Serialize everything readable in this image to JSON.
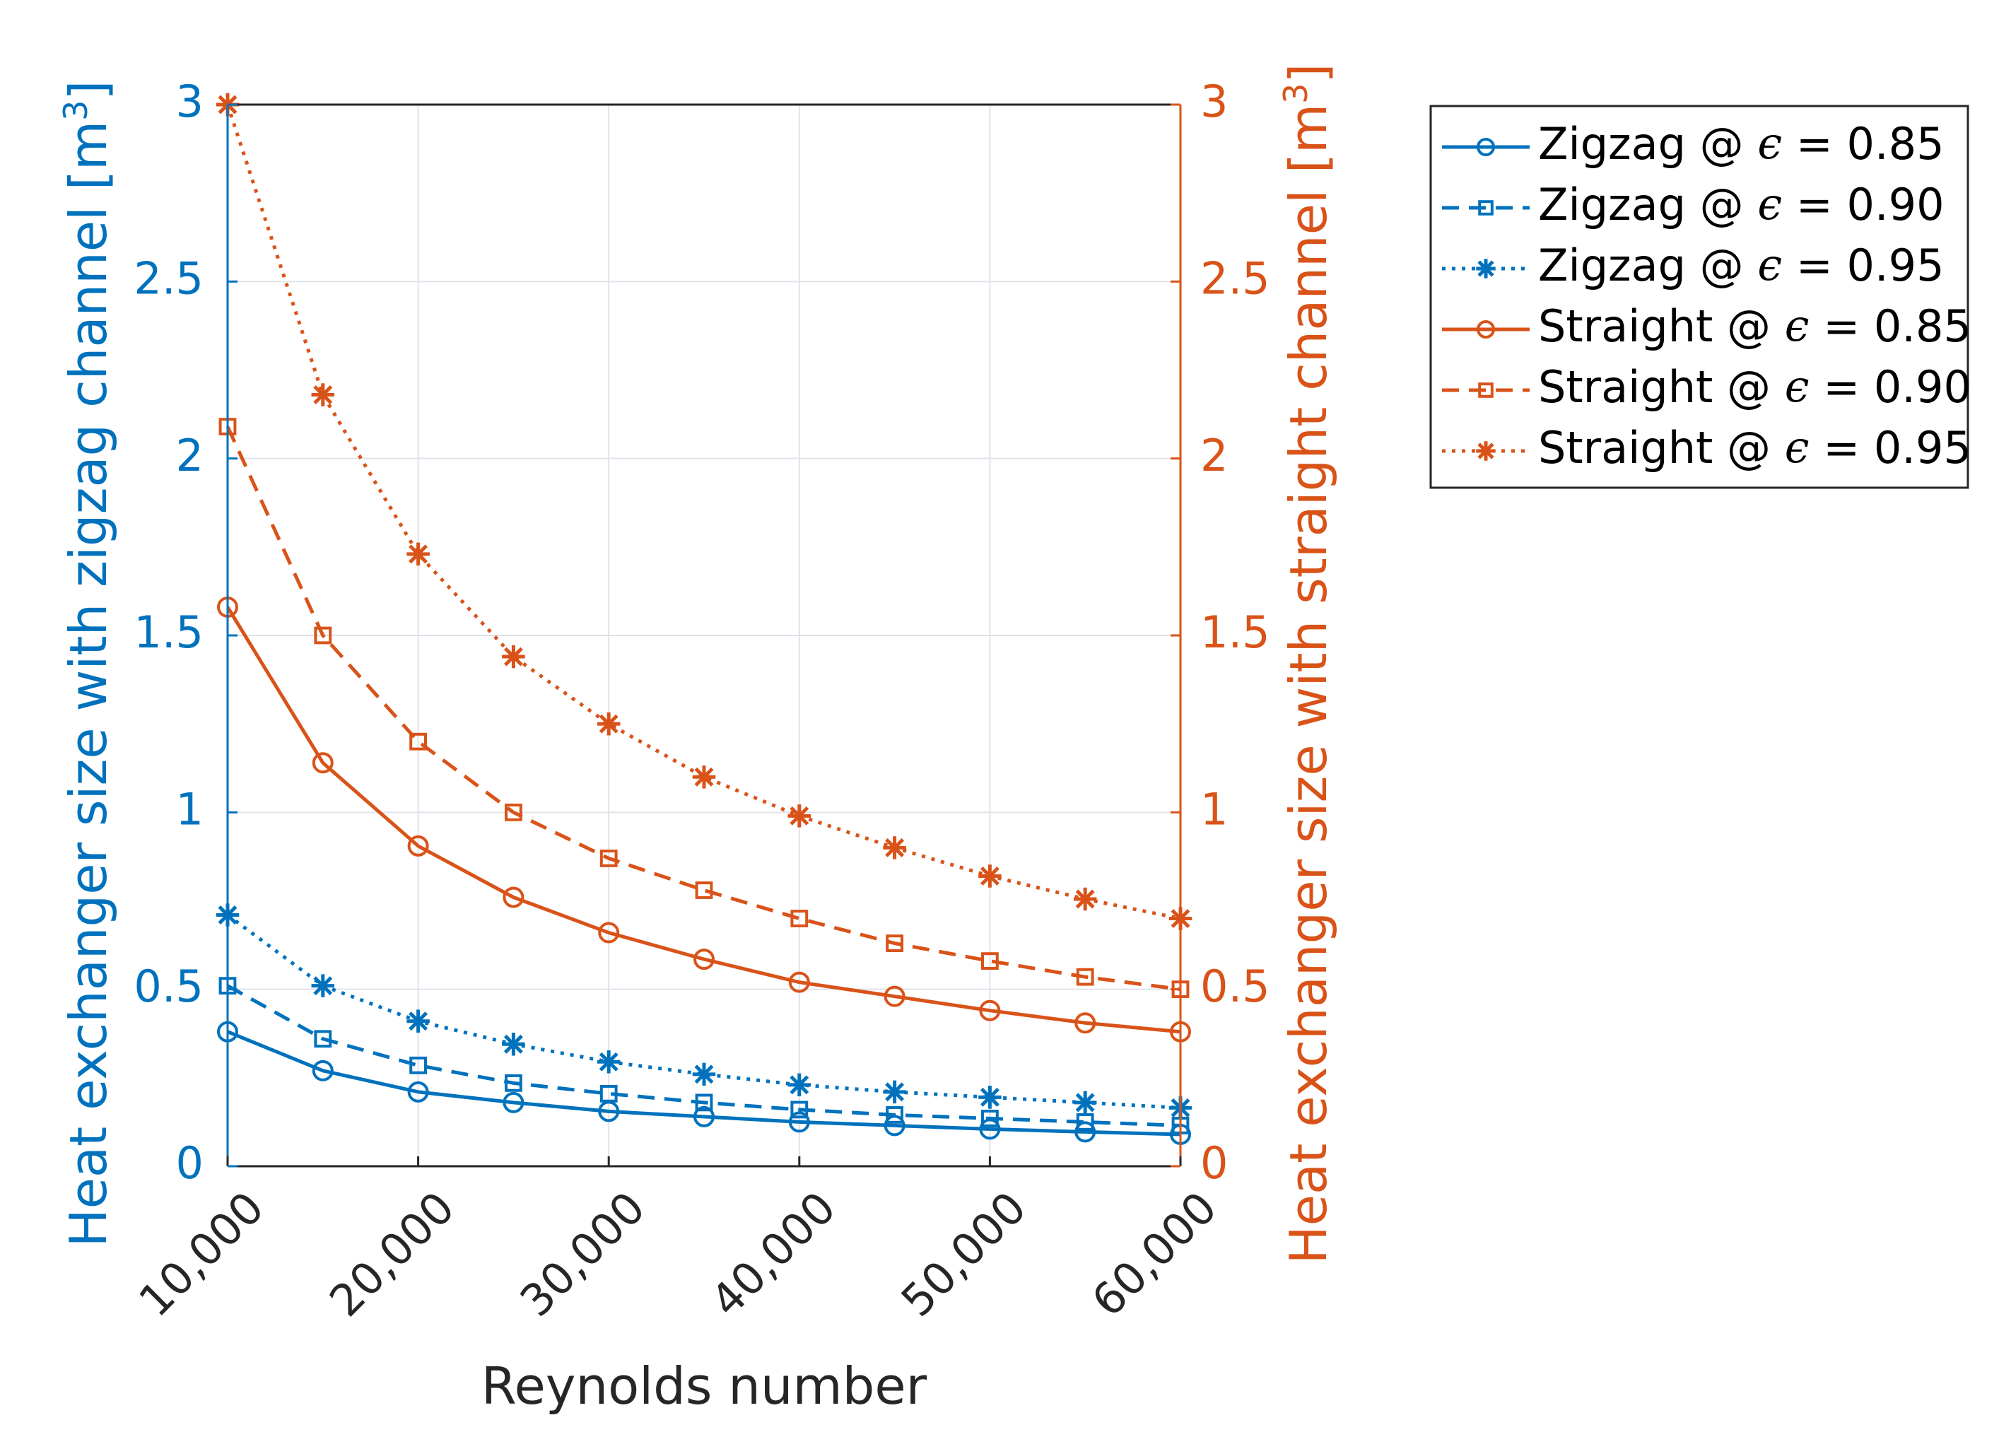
{
  "chart_data": {
    "type": "line",
    "title": "",
    "xlabel": "Reynolds number",
    "ylabel_left": "Heat exchanger size with zigzag channel [m",
    "ylabel_right": "Heat exchanger size with straight channel [m",
    "ylabel_superscript": "3",
    "ylabel_close": "]",
    "x": [
      10000,
      15000,
      20000,
      25000,
      30000,
      35000,
      40000,
      45000,
      50000,
      55000,
      60000
    ],
    "xlim": [
      10000,
      60000
    ],
    "ylim_left": [
      0,
      3
    ],
    "ylim_right": [
      0,
      3
    ],
    "x_ticks": [
      10000,
      20000,
      30000,
      40000,
      50000,
      60000
    ],
    "x_tick_labels": [
      "10,000",
      "20,000",
      "30,000",
      "40,000",
      "50,000",
      "60,000"
    ],
    "y_ticks": [
      0,
      0.5,
      1,
      1.5,
      2,
      2.5,
      3
    ],
    "y_tick_labels": [
      "0",
      "0.5",
      "1",
      "1.5",
      "2",
      "2.5",
      "3"
    ],
    "grid": true,
    "legend_position": "outside top-right",
    "colors": {
      "zigzag": "#0072BD",
      "straight": "#D95319",
      "grid": "#dfe3ea",
      "axis": "#262626"
    },
    "series": [
      {
        "name": "Zigzag @ ϵ = 0.85",
        "label_prefix": "Zigzag @ ",
        "epsilon_symbol": "ϵ",
        "label_suffix": " = 0.85",
        "axis": "left",
        "color_key": "zigzag",
        "line": "solid",
        "marker": "circle",
        "values": [
          0.38,
          0.27,
          0.21,
          0.18,
          0.155,
          0.14,
          0.125,
          0.115,
          0.105,
          0.097,
          0.09
        ]
      },
      {
        "name": "Zigzag @ ϵ = 0.90",
        "label_prefix": "Zigzag @ ",
        "epsilon_symbol": "ϵ",
        "label_suffix": " = 0.90",
        "axis": "left",
        "color_key": "zigzag",
        "line": "dashed",
        "marker": "square",
        "values": [
          0.51,
          0.36,
          0.285,
          0.235,
          0.205,
          0.18,
          0.16,
          0.145,
          0.135,
          0.125,
          0.115
        ]
      },
      {
        "name": "Zigzag @ ϵ = 0.95",
        "label_prefix": "Zigzag @ ",
        "epsilon_symbol": "ϵ",
        "label_suffix": " = 0.95",
        "axis": "left",
        "color_key": "zigzag",
        "line": "dotted",
        "marker": "asterisk",
        "values": [
          0.71,
          0.51,
          0.41,
          0.345,
          0.295,
          0.26,
          0.23,
          0.21,
          0.195,
          0.18,
          0.165
        ]
      },
      {
        "name": "Straight @ ϵ = 0.85",
        "label_prefix": "Straight @ ",
        "epsilon_symbol": "ϵ",
        "label_suffix": " = 0.85",
        "axis": "right",
        "color_key": "straight",
        "line": "solid",
        "marker": "circle",
        "values": [
          1.58,
          1.14,
          0.905,
          0.76,
          0.66,
          0.585,
          0.52,
          0.48,
          0.44,
          0.405,
          0.38
        ]
      },
      {
        "name": "Straight @ ϵ = 0.90",
        "label_prefix": "Straight @ ",
        "epsilon_symbol": "ϵ",
        "label_suffix": " = 0.90",
        "axis": "right",
        "color_key": "straight",
        "line": "dashed",
        "marker": "square",
        "values": [
          2.09,
          1.5,
          1.2,
          1.0,
          0.87,
          0.78,
          0.7,
          0.63,
          0.58,
          0.535,
          0.5
        ]
      },
      {
        "name": "Straight @ ϵ = 0.95",
        "label_prefix": "Straight @ ",
        "epsilon_symbol": "ϵ",
        "label_suffix": " = 0.95",
        "axis": "right",
        "color_key": "straight",
        "line": "dotted",
        "marker": "asterisk",
        "values": [
          3.0,
          2.18,
          1.73,
          1.44,
          1.25,
          1.1,
          0.99,
          0.9,
          0.82,
          0.755,
          0.7
        ]
      }
    ]
  }
}
